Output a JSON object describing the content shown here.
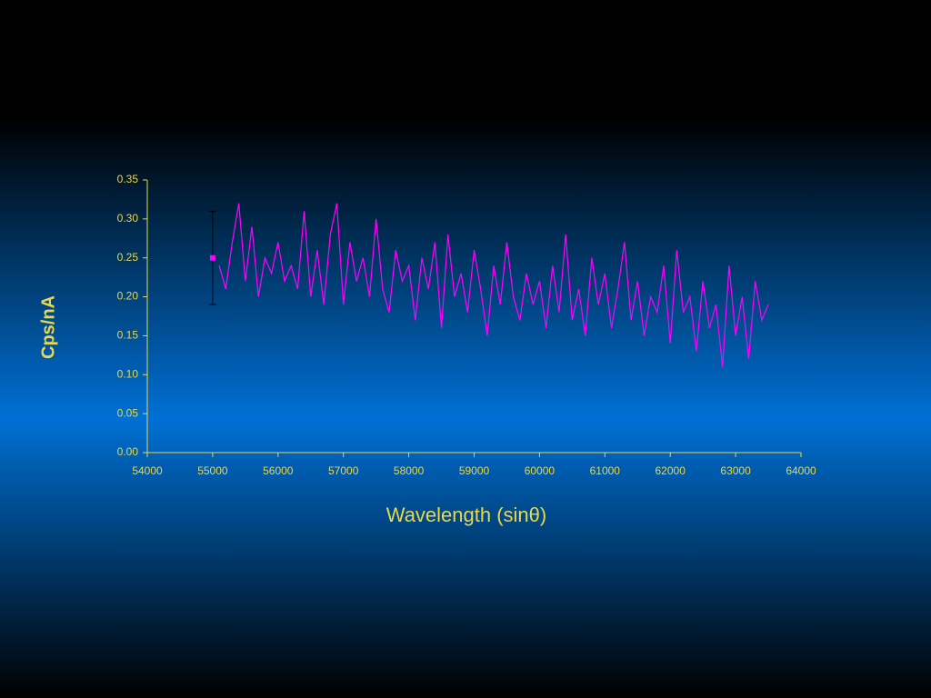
{
  "chart_data": {
    "type": "line",
    "y_label": "Cps/nA",
    "x_label": "Wavelength (sinθ)",
    "xlim": [
      54000,
      64000
    ],
    "xticks": [
      54000,
      55000,
      56000,
      57000,
      58000,
      59000,
      60000,
      61000,
      62000,
      63000,
      64000
    ],
    "ylim": [
      0,
      0.35
    ],
    "yticks": [
      {
        "value": 0,
        "label": "0.00"
      },
      0.05,
      {
        "value": 0.1,
        "label": "0.10"
      },
      0.15,
      {
        "value": 0.2,
        "label": "0.20"
      },
      0.25,
      {
        "value": 0.3,
        "label": "0.30"
      },
      0.35
    ],
    "series": [
      {
        "color": "#ff00ff",
        "x": [
          55100,
          55200,
          55300,
          55400,
          55500,
          55600,
          55700,
          55800,
          55900,
          56000,
          56100,
          56200,
          56300,
          56400,
          56500,
          56600,
          56700,
          56800,
          56900,
          57000,
          57100,
          57200,
          57300,
          57400,
          57500,
          57600,
          57700,
          57800,
          57900,
          58000,
          58100,
          58200,
          58300,
          58400,
          58500,
          58600,
          58700,
          58800,
          58900,
          59000,
          59100,
          59200,
          59300,
          59400,
          59500,
          59600,
          59700,
          59800,
          59900,
          60000,
          60100,
          60200,
          60300,
          60400,
          60500,
          60600,
          60700,
          60800,
          60900,
          61000,
          61100,
          61200,
          61300,
          61400,
          61500,
          61600,
          61700,
          61800,
          61900,
          62000,
          62100,
          62200,
          62300,
          62400,
          62500,
          62600,
          62700,
          62800,
          62900,
          63000,
          63100,
          63200,
          63300,
          63400,
          63500
        ],
        "values": [
          0.24,
          0.21,
          0.27,
          0.32,
          0.22,
          0.29,
          0.2,
          0.25,
          0.23,
          0.27,
          0.22,
          0.24,
          0.21,
          0.31,
          0.2,
          0.26,
          0.19,
          0.28,
          0.32,
          0.19,
          0.27,
          0.22,
          0.25,
          0.2,
          0.3,
          0.21,
          0.18,
          0.26,
          0.22,
          0.24,
          0.17,
          0.25,
          0.21,
          0.27,
          0.16,
          0.28,
          0.2,
          0.23,
          0.18,
          0.26,
          0.21,
          0.15,
          0.24,
          0.19,
          0.27,
          0.2,
          0.17,
          0.23,
          0.19,
          0.22,
          0.16,
          0.24,
          0.18,
          0.28,
          0.17,
          0.21,
          0.15,
          0.25,
          0.19,
          0.23,
          0.16,
          0.21,
          0.27,
          0.17,
          0.22,
          0.15,
          0.2,
          0.18,
          0.24,
          0.14,
          0.26,
          0.18,
          0.2,
          0.13,
          0.22,
          0.16,
          0.19,
          0.11,
          0.24,
          0.15,
          0.2,
          0.12,
          0.22,
          0.17,
          0.19
        ]
      },
      {
        "color": "#ff00ff",
        "error_color": "#000000",
        "x": [
          55000
        ],
        "values": [
          0.25
        ],
        "errors": [
          0.06
        ]
      }
    ]
  }
}
